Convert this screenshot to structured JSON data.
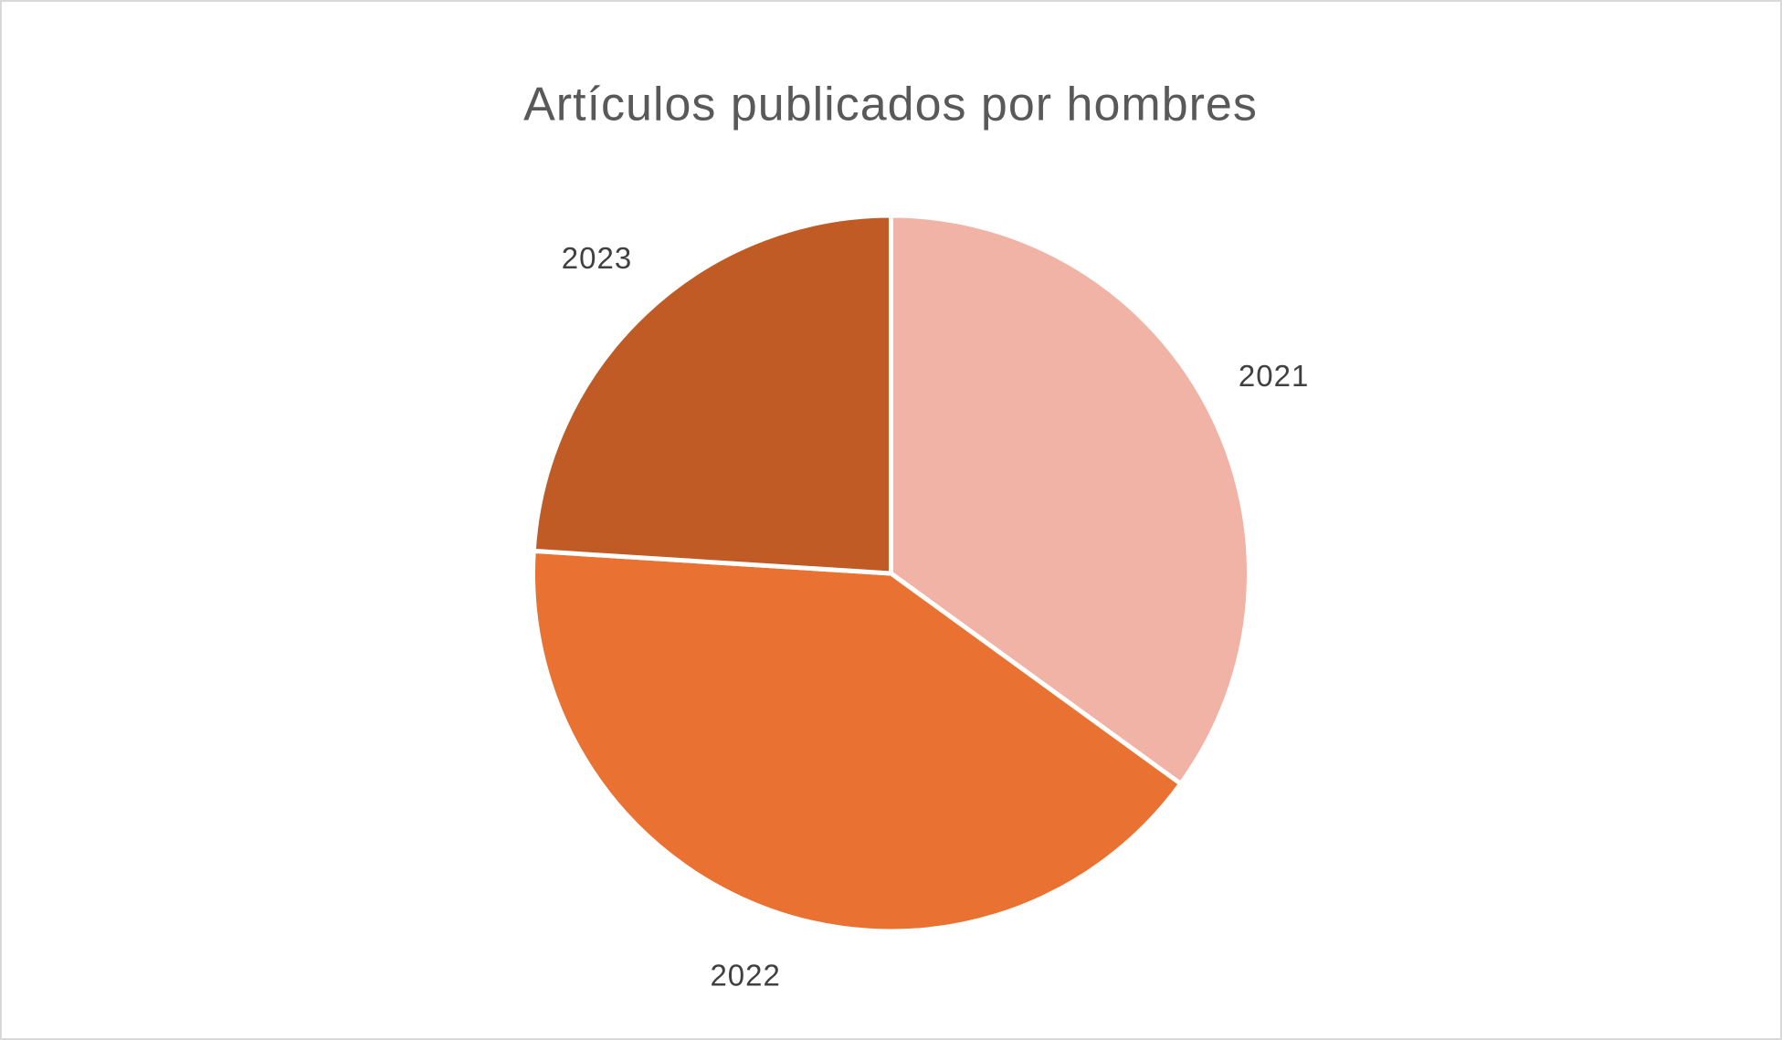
{
  "chart_data": {
    "type": "pie",
    "title": "Artículos publicados por hombres",
    "categories": [
      "2021",
      "2022",
      "2023"
    ],
    "values": [
      35,
      41,
      24
    ],
    "colors": [
      "#f1b3a5",
      "#e97132",
      "#c05b26"
    ]
  }
}
